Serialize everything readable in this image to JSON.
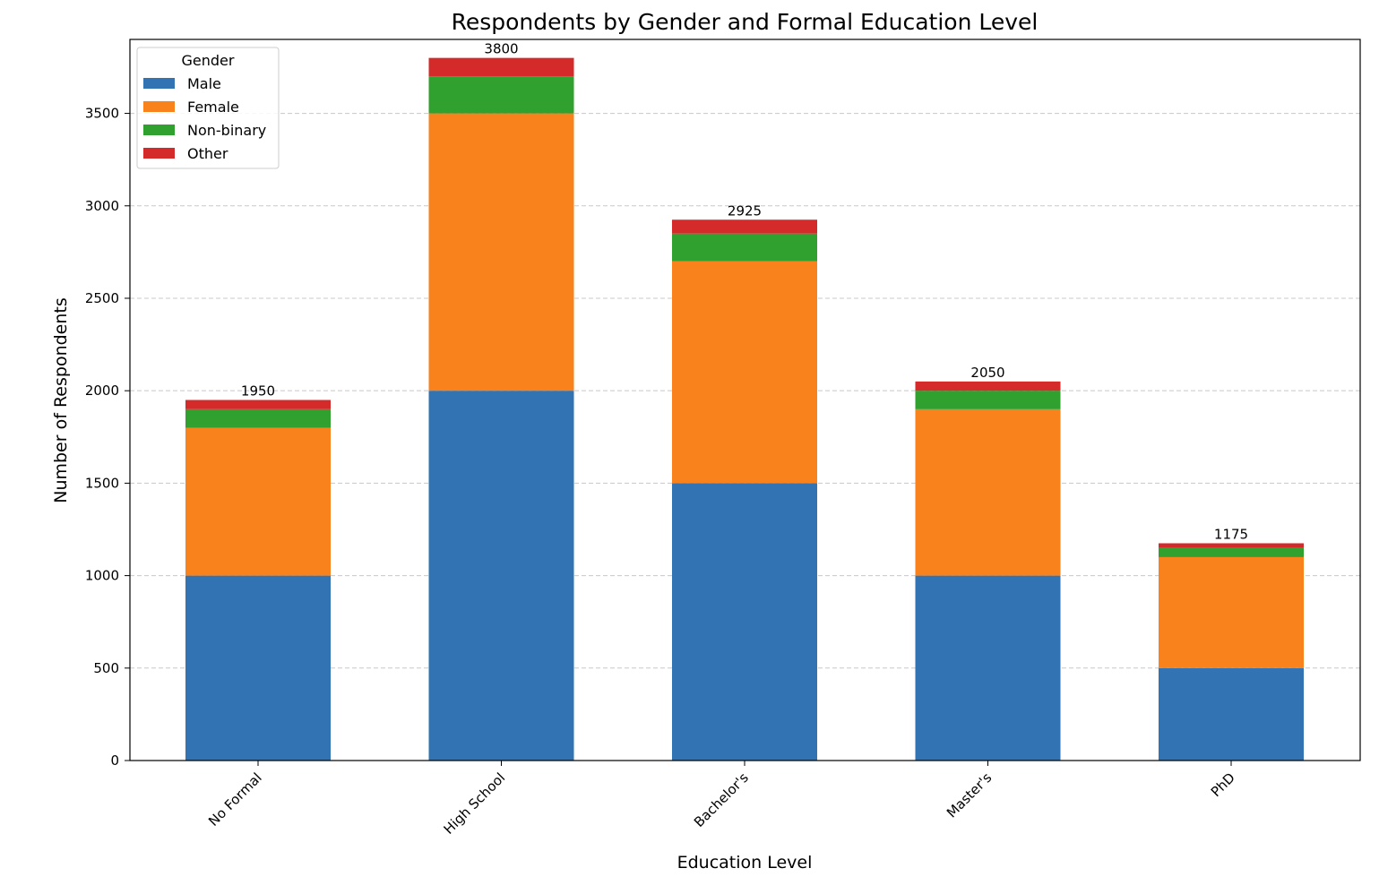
{
  "chart_data": {
    "type": "bar",
    "stacked": true,
    "title": "Respondents by Gender and Formal Education Level",
    "xlabel": "Education Level",
    "ylabel": "Number of Respondents",
    "categories": [
      "No Formal",
      "High School",
      "Bachelor's",
      "Master's",
      "PhD"
    ],
    "series": [
      {
        "name": "Male",
        "color": "#3274b3",
        "values": [
          1000,
          2000,
          1500,
          1000,
          500
        ]
      },
      {
        "name": "Female",
        "color": "#fa821d",
        "values": [
          800,
          1500,
          1200,
          900,
          600
        ]
      },
      {
        "name": "Non-binary",
        "color": "#30a02e",
        "values": [
          100,
          200,
          150,
          100,
          50
        ]
      },
      {
        "name": "Other",
        "color": "#d52a2a",
        "values": [
          50,
          100,
          75,
          50,
          25
        ]
      }
    ],
    "totals": [
      "1950",
      "3800",
      "2925",
      "2050",
      "1175"
    ],
    "ylim": [
      0,
      3900
    ],
    "yticks": [
      "0",
      "500",
      "1000",
      "1500",
      "2000",
      "2500",
      "3000",
      "3500"
    ],
    "grid": "y, dashed",
    "legend": {
      "title": "Gender",
      "placement": "top-left"
    }
  }
}
